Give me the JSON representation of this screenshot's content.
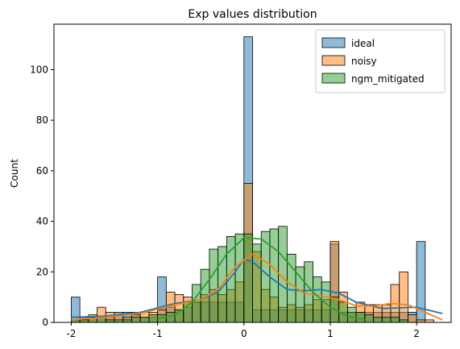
{
  "chart_data": {
    "type": "histogram",
    "title": "Exp values distribution",
    "xlabel": "",
    "ylabel": "Count",
    "xlim": [
      -2.2,
      2.4
    ],
    "ylim": [
      0,
      118
    ],
    "x_ticks": [
      -2,
      -1,
      0,
      1,
      2
    ],
    "y_ticks": [
      0,
      20,
      40,
      60,
      80,
      100
    ],
    "bin_edges": [
      -2.0,
      -1.9,
      -1.8,
      -1.7,
      -1.6,
      -1.5,
      -1.4,
      -1.3,
      -1.2,
      -1.1,
      -1.0,
      -0.9,
      -0.8,
      -0.7,
      -0.6,
      -0.5,
      -0.4,
      -0.3,
      -0.2,
      -0.1,
      0.0,
      0.1,
      0.2,
      0.3,
      0.4,
      0.5,
      0.6,
      0.7,
      0.8,
      0.9,
      1.0,
      1.1,
      1.2,
      1.3,
      1.4,
      1.5,
      1.6,
      1.7,
      1.8,
      1.9,
      2.0,
      2.1,
      2.2
    ],
    "grid": false,
    "legend": {
      "position": "top-right"
    },
    "series": [
      {
        "name": "ideal",
        "color": "#1f77b4",
        "counts": [
          10,
          2,
          2,
          2,
          2,
          4,
          4,
          4,
          2,
          2,
          18,
          6,
          5,
          6,
          8,
          8,
          8,
          8,
          8,
          8,
          113,
          5,
          5,
          5,
          5,
          5,
          5,
          5,
          5,
          5,
          31,
          4,
          4,
          4,
          4,
          4,
          4,
          4,
          4,
          4,
          32,
          0
        ],
        "kde": [
          [
            -2.0,
            2
          ],
          [
            -1.6,
            2.5
          ],
          [
            -1.2,
            4
          ],
          [
            -0.8,
            7.5
          ],
          [
            -0.5,
            9
          ],
          [
            -0.3,
            12
          ],
          [
            -0.1,
            20
          ],
          [
            0.0,
            25
          ],
          [
            0.1,
            24
          ],
          [
            0.3,
            18
          ],
          [
            0.5,
            13
          ],
          [
            0.7,
            12.5
          ],
          [
            0.9,
            13
          ],
          [
            1.1,
            11.5
          ],
          [
            1.3,
            8
          ],
          [
            1.6,
            5.5
          ],
          [
            2.0,
            6
          ],
          [
            2.3,
            3.5
          ]
        ]
      },
      {
        "name": "noisy",
        "color": "#ff7f0e",
        "counts": [
          1,
          2,
          3,
          6,
          4,
          3,
          2,
          3,
          4,
          4,
          5,
          12,
          11,
          10,
          8,
          11,
          13,
          11,
          13,
          16,
          55,
          28,
          13,
          10,
          6,
          7,
          6,
          7,
          9,
          9,
          32,
          12,
          4,
          8,
          7,
          7,
          7,
          15,
          20,
          3,
          1,
          1
        ],
        "kde": [
          [
            -2.0,
            1
          ],
          [
            -1.6,
            2
          ],
          [
            -1.2,
            3.5
          ],
          [
            -0.8,
            7
          ],
          [
            -0.5,
            9
          ],
          [
            -0.3,
            13
          ],
          [
            -0.1,
            22
          ],
          [
            0.1,
            27
          ],
          [
            0.3,
            23
          ],
          [
            0.5,
            16
          ],
          [
            0.7,
            11.5
          ],
          [
            0.9,
            10.5
          ],
          [
            1.1,
            9
          ],
          [
            1.3,
            6.5
          ],
          [
            1.5,
            6.5
          ],
          [
            1.7,
            7.5
          ],
          [
            1.9,
            7
          ],
          [
            2.1,
            4
          ],
          [
            2.3,
            1
          ]
        ]
      },
      {
        "name": "ngm_mitigated",
        "color": "#2ca02c",
        "counts": [
          1,
          1,
          2,
          2,
          1,
          1,
          1,
          2,
          2,
          3,
          3,
          4,
          5,
          8,
          15,
          21,
          29,
          30,
          34,
          35,
          35,
          31,
          36,
          37,
          38,
          27,
          22,
          24,
          18,
          16,
          10,
          8,
          6,
          4,
          3,
          2,
          2,
          2,
          1,
          0,
          0,
          0
        ],
        "kde": [
          [
            -1.0,
            1.5
          ],
          [
            -0.8,
            3
          ],
          [
            -0.6,
            8
          ],
          [
            -0.4,
            17
          ],
          [
            -0.2,
            27
          ],
          [
            0.0,
            33.5
          ],
          [
            0.2,
            33
          ],
          [
            0.4,
            28
          ],
          [
            0.6,
            20
          ],
          [
            0.8,
            12
          ],
          [
            1.0,
            6
          ],
          [
            1.2,
            2.5
          ],
          [
            1.4,
            1
          ]
        ]
      }
    ]
  }
}
